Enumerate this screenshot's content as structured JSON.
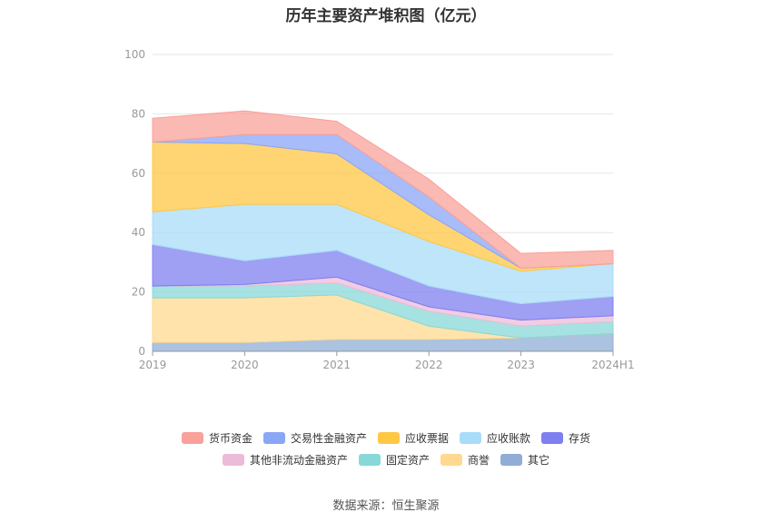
{
  "title": "历年主要资产堆积图（亿元）",
  "source": "数据来源：恒生聚源",
  "chart_data": {
    "type": "area",
    "stacked": true,
    "categories": [
      "2019",
      "2020",
      "2021",
      "2022",
      "2023",
      "2024H1"
    ],
    "y_ticks": [
      "0",
      "20",
      "40",
      "60",
      "80",
      "100"
    ],
    "ylim": [
      0,
      100
    ],
    "grid": true,
    "legend_position": "bottom",
    "series": [
      {
        "name": "其它",
        "color": "#8fadd6",
        "values": [
          3,
          3,
          4,
          4,
          4.5,
          6
        ]
      },
      {
        "name": "商誉",
        "color": "#ffd98f",
        "values": [
          15,
          15,
          15,
          4.5,
          0,
          0
        ]
      },
      {
        "name": "固定资产",
        "color": "#88d8d8",
        "values": [
          4,
          4,
          4,
          5,
          4,
          4
        ]
      },
      {
        "name": "其他非流动金融资产",
        "color": "#ecbbd8",
        "values": [
          0,
          0.5,
          2,
          1.5,
          2,
          2
        ]
      },
      {
        "name": "存货",
        "color": "#7f7ff0",
        "values": [
          14,
          8,
          9,
          7,
          5.5,
          6.5
        ]
      },
      {
        "name": "应收账款",
        "color": "#a8dcf8",
        "values": [
          11,
          19,
          15.5,
          15,
          11,
          11
        ]
      },
      {
        "name": "应收票据",
        "color": "#ffc744",
        "values": [
          23.5,
          20.5,
          17,
          9,
          1,
          0
        ]
      },
      {
        "name": "交易性金融资产",
        "color": "#8aa6f6",
        "values": [
          0,
          3,
          6.5,
          6,
          0,
          0
        ]
      },
      {
        "name": "货币资金",
        "color": "#f9a19a",
        "values": [
          8,
          8,
          4.5,
          6,
          5,
          4.5
        ]
      }
    ],
    "legend_rows": [
      [
        "货币资金",
        "交易性金融资产",
        "应收票据",
        "应收账款",
        "存货"
      ],
      [
        "其他非流动金融资产",
        "固定资产",
        "商誉",
        "其它"
      ]
    ]
  }
}
